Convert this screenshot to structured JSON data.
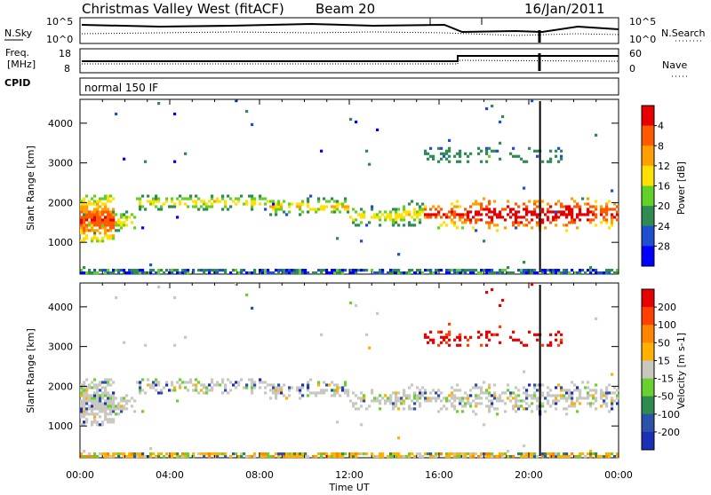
{
  "header": {
    "title": "Christmas Valley West (fitACF)",
    "beam": "Beam 20",
    "date": "16/Jan/2011"
  },
  "status": {
    "left_top": "N.Sky",
    "left_mid_1": "Freq.",
    "left_mid_2": "[MHz]",
    "left_bottom": "CPID",
    "right_top": "N.Search",
    "right_mid": "Nave",
    "nsky_ticks": [
      "10^5",
      "10^0"
    ],
    "freq_ticks": [
      "18",
      "8"
    ],
    "nave_ticks": [
      "60",
      "0"
    ],
    "cpid_text": "normal 150 IF"
  },
  "chart_data": [
    {
      "type": "heatmap",
      "name": "power",
      "ylabel": "Slant Range [km]",
      "ylim": [
        200,
        4600
      ],
      "yticks": [
        "1000",
        "2000",
        "3000",
        "4000"
      ],
      "xlim": [
        0,
        24
      ],
      "xticks": [
        "00:00",
        "04:00",
        "08:00",
        "12:00",
        "16:00",
        "20:00",
        "00:00"
      ],
      "colorbar": {
        "label": "Power [dB]",
        "ticks": [
          "4",
          "8",
          "12",
          "16",
          "20",
          "24",
          "28"
        ],
        "colors": [
          "#0000ff",
          "#1f4fd0",
          "#2f8a54",
          "#62d028",
          "#ffe000",
          "#ffa000",
          "#ff5a00",
          "#e60000"
        ]
      }
    },
    {
      "type": "heatmap",
      "name": "velocity",
      "ylabel": "Slant Range [km]",
      "xlabel": "Time UT",
      "ylim": [
        200,
        4600
      ],
      "yticks": [
        "1000",
        "2000",
        "3000",
        "4000"
      ],
      "xlim": [
        0,
        24
      ],
      "xticks": [
        "00:00",
        "04:00",
        "08:00",
        "12:00",
        "16:00",
        "20:00",
        "00:00"
      ],
      "colorbar": {
        "label": "Velocity [m s-1]",
        "ticks": [
          "200",
          "100",
          "50",
          "15",
          "-15",
          "-50",
          "-100",
          "-200"
        ],
        "colors": [
          "#1a2fb5",
          "#2a52a8",
          "#2e8a4e",
          "#6ad030",
          "#c8c8c0",
          "#ffb000",
          "#ff8400",
          "#ff4000",
          "#e60000"
        ]
      }
    }
  ]
}
